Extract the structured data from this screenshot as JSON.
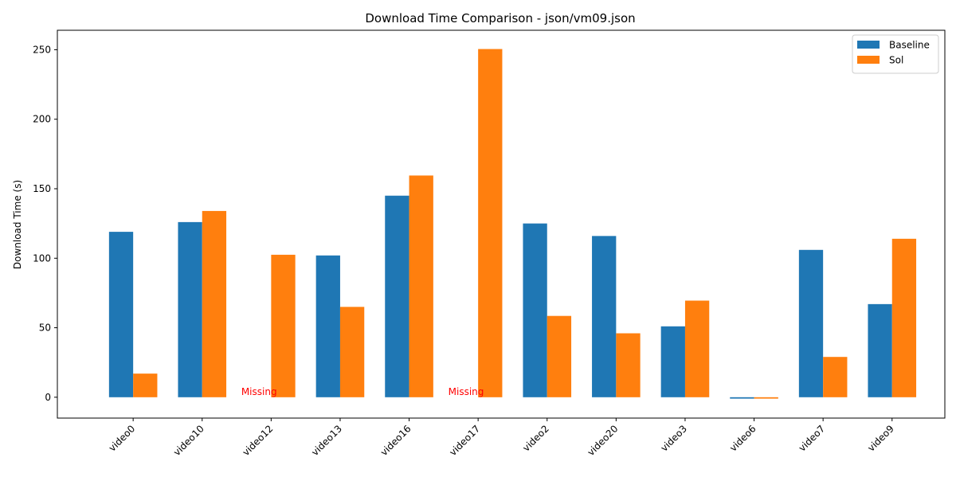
{
  "chart_data": {
    "type": "bar",
    "title": "Download Time Comparison - json/vm09.json",
    "xlabel": "",
    "ylabel": "Download Time (s)",
    "ylim": [
      -15,
      264
    ],
    "yticks": [
      0,
      50,
      100,
      150,
      200,
      250
    ],
    "grid": false,
    "legend_position": "top-right",
    "categories": [
      "video0",
      "video10",
      "video12",
      "video13",
      "video16",
      "video17",
      "video2",
      "video20",
      "video3",
      "video6",
      "video7",
      "video9"
    ],
    "series": [
      {
        "name": "Baseline",
        "color": "#1f77b4",
        "values": [
          119,
          126,
          null,
          102,
          145,
          null,
          125,
          116,
          51,
          -1,
          106,
          67
        ]
      },
      {
        "name": "Sol",
        "color": "#ff7f0e",
        "values": [
          17,
          134,
          102.5,
          65,
          159.5,
          250.5,
          58.5,
          46,
          69.5,
          -1,
          29,
          114
        ]
      }
    ],
    "annotations": [
      {
        "text": "Missing",
        "category": "video12",
        "series": "Baseline",
        "color": "#ff0000"
      },
      {
        "text": "Missing",
        "category": "video17",
        "series": "Baseline",
        "color": "#ff0000"
      }
    ]
  }
}
